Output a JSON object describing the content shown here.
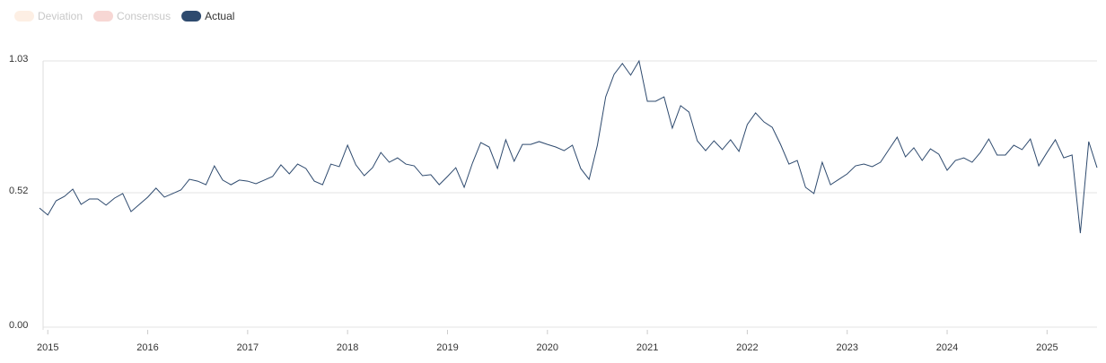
{
  "chart_data": {
    "type": "line",
    "legend_hidden": [
      {
        "name": "Deviation",
        "color": "#fdefe4"
      },
      {
        "name": "Consensus",
        "color": "#f7d7d4"
      }
    ],
    "x": [
      2014.917,
      2015,
      2015.083,
      2015.167,
      2015.25,
      2015.333,
      2015.417,
      2015.5,
      2015.583,
      2015.667,
      2015.75,
      2015.833,
      2015.917,
      2016,
      2016.083,
      2016.167,
      2016.25,
      2016.333,
      2016.417,
      2016.5,
      2016.583,
      2016.667,
      2016.75,
      2016.833,
      2016.917,
      2017,
      2017.083,
      2017.167,
      2017.25,
      2017.333,
      2017.417,
      2017.5,
      2017.583,
      2017.667,
      2017.75,
      2017.833,
      2017.917,
      2018,
      2018.083,
      2018.167,
      2018.25,
      2018.333,
      2018.417,
      2018.5,
      2018.583,
      2018.667,
      2018.75,
      2018.833,
      2018.917,
      2019,
      2019.083,
      2019.167,
      2019.25,
      2019.333,
      2019.417,
      2019.5,
      2019.583,
      2019.667,
      2019.75,
      2019.833,
      2019.917,
      2020,
      2020.083,
      2020.167,
      2020.25,
      2020.333,
      2020.417,
      2020.5,
      2020.583,
      2020.667,
      2020.75,
      2020.833,
      2020.917,
      2021,
      2021.083,
      2021.167,
      2021.25,
      2021.333,
      2021.417,
      2021.5,
      2021.583,
      2021.667,
      2021.75,
      2021.833,
      2021.917,
      2022,
      2022.083,
      2022.167,
      2022.25,
      2022.333,
      2022.417,
      2022.5,
      2022.583,
      2022.667,
      2022.75,
      2022.833,
      2022.917,
      2023,
      2023.083,
      2023.167,
      2023.25,
      2023.333,
      2023.417,
      2023.5,
      2023.583,
      2023.667,
      2023.75,
      2023.833,
      2023.917,
      2024,
      2024.083,
      2024.167,
      2024.25,
      2024.333,
      2024.417,
      2024.5,
      2024.583,
      2024.667,
      2024.75,
      2024.833,
      2024.917,
      2025,
      2025.083,
      2025.167,
      2025.25,
      2025.333,
      2025.417,
      2025.5
    ],
    "series": [
      {
        "name": "Actual",
        "color": "#2e4a6e",
        "values": [
          0.461,
          0.434,
          0.489,
          0.506,
          0.534,
          0.475,
          0.496,
          0.496,
          0.472,
          0.499,
          0.517,
          0.447,
          0.475,
          0.503,
          0.538,
          0.503,
          0.517,
          0.531,
          0.572,
          0.565,
          0.551,
          0.624,
          0.569,
          0.551,
          0.569,
          0.565,
          0.555,
          0.569,
          0.583,
          0.628,
          0.593,
          0.631,
          0.614,
          0.565,
          0.551,
          0.631,
          0.621,
          0.704,
          0.628,
          0.586,
          0.617,
          0.676,
          0.638,
          0.655,
          0.631,
          0.624,
          0.586,
          0.59,
          0.551,
          0.583,
          0.617,
          0.541,
          0.635,
          0.714,
          0.697,
          0.614,
          0.725,
          0.642,
          0.707,
          0.707,
          0.718,
          0.707,
          0.697,
          0.683,
          0.704,
          0.614,
          0.572,
          0.704,
          0.891,
          0.978,
          1.02,
          0.975,
          1.03,
          0.874,
          0.874,
          0.891,
          0.77,
          0.857,
          0.832,
          0.721,
          0.683,
          0.721,
          0.687,
          0.725,
          0.68,
          0.784,
          0.829,
          0.794,
          0.773,
          0.707,
          0.631,
          0.645,
          0.541,
          0.517,
          0.638,
          0.551,
          0.572,
          0.593,
          0.624,
          0.631,
          0.621,
          0.638,
          0.687,
          0.735,
          0.659,
          0.694,
          0.645,
          0.69,
          0.669,
          0.607,
          0.645,
          0.655,
          0.638,
          0.676,
          0.728,
          0.666,
          0.666,
          0.704,
          0.687,
          0.728,
          0.624,
          0.676,
          0.725,
          0.655,
          0.666,
          0.364,
          0.718,
          0.617
        ]
      }
    ],
    "xlim": [
      2014.917,
      2025.5
    ],
    "xticks": [
      2015,
      2016,
      2017,
      2018,
      2019,
      2020,
      2021,
      2022,
      2023,
      2024,
      2025
    ],
    "ylim": [
      0,
      1.03
    ],
    "yticks": [
      {
        "value": 0,
        "label": "0.00"
      },
      {
        "value": 0.52,
        "label": "0.52"
      },
      {
        "value": 1.03,
        "label": "1.03"
      }
    ],
    "grid": true
  }
}
